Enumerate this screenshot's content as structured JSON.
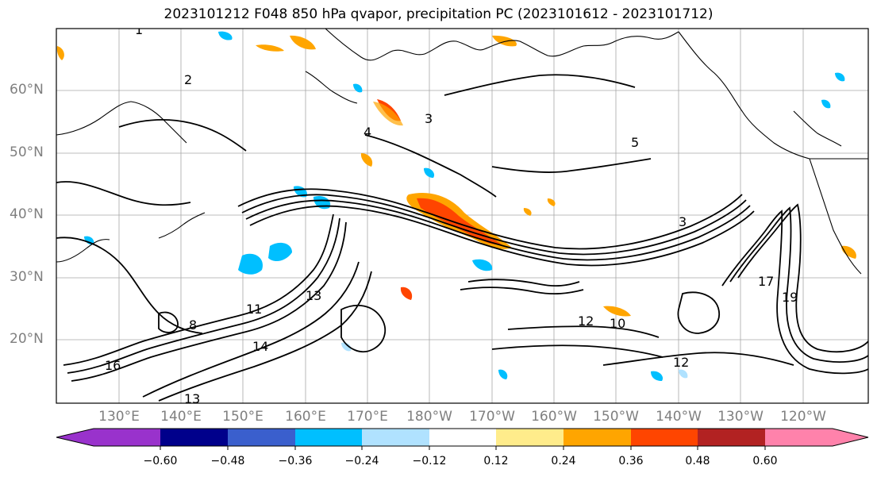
{
  "title": "2023101212 F048 850 hPa qvapor, precipitation PC (2023101612 - 2023101712)",
  "map": {
    "projection": "PlateCarree",
    "lon_range": [
      "120°E",
      "115°W"
    ],
    "lat_range": [
      "10°N",
      "70°N"
    ],
    "grid": true,
    "lat_labels": [
      "60°N",
      "50°N",
      "40°N",
      "30°N",
      "20°N"
    ],
    "lon_labels": [
      "130°E",
      "140°E",
      "150°E",
      "160°E",
      "170°E",
      "180°W",
      "170°W",
      "160°W",
      "150°W",
      "140°W",
      "130°W",
      "120°W"
    ],
    "contour_color": "#000000",
    "contour_labels_visible": [
      "1",
      "2",
      "3",
      "4",
      "5",
      "8",
      "10",
      "11",
      "12",
      "13",
      "14",
      "16",
      "17",
      "19"
    ],
    "features": [
      "coastlines",
      "country borders",
      "qvapor contours",
      "precipitation shading"
    ]
  },
  "colorbar": {
    "orientation": "horizontal",
    "extend": "both",
    "ticks": [
      "−0.60",
      "−0.48",
      "−0.36",
      "−0.24",
      "−0.12",
      "0.12",
      "0.24",
      "0.36",
      "0.48",
      "0.60"
    ],
    "colors": [
      "#9932cc",
      "#00008b",
      "#3a5fcd",
      "#00bfff",
      "#b0e2ff",
      "#ffffff",
      "#ffec8b",
      "#ffa500",
      "#ff4500",
      "#b22222",
      "#ff82ab"
    ]
  }
}
